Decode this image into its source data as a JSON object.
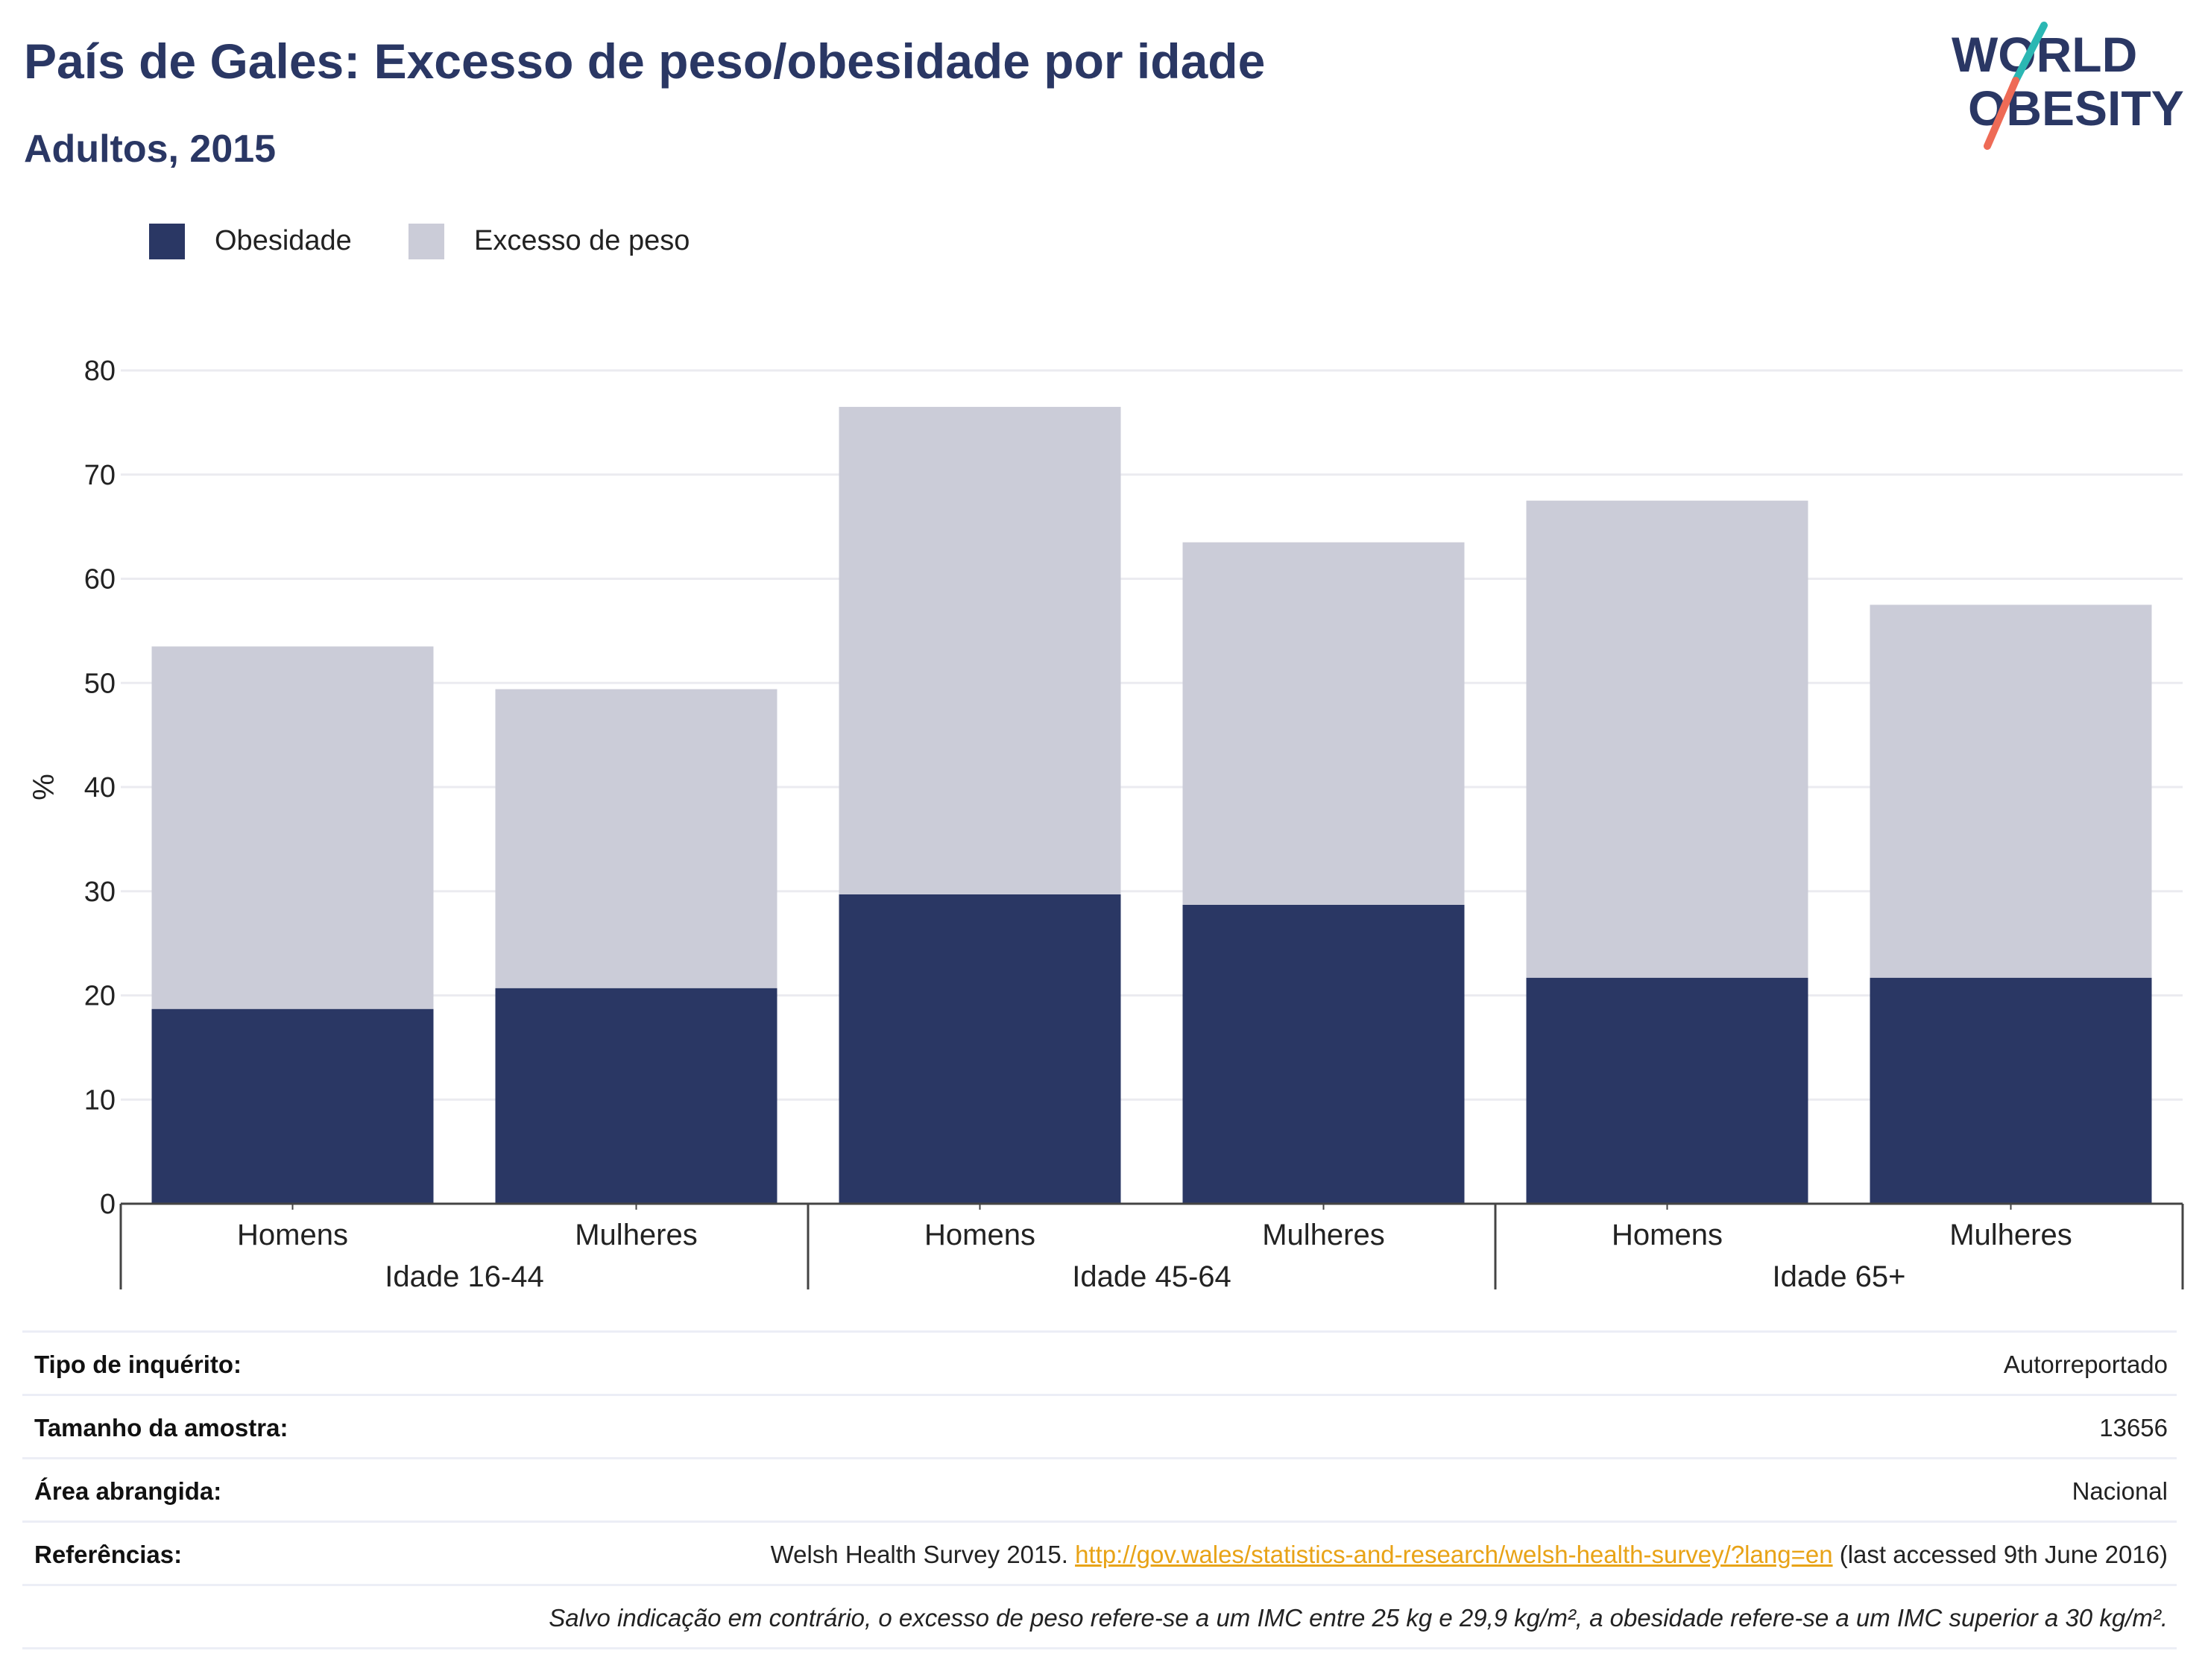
{
  "header": {
    "title": "País de Gales: Excesso de peso/obesidade por idade",
    "subtitle": "Adultos, 2015",
    "logo_line1": "WORLD",
    "logo_line2": "OBESITY"
  },
  "legend": [
    {
      "label": "Obesidade",
      "color": "#2a3764"
    },
    {
      "label": "Excesso de peso",
      "color": "#cbccd8"
    }
  ],
  "chart_data": {
    "type": "bar",
    "stacked": true,
    "ylabel": "%",
    "ylim": [
      0,
      80
    ],
    "yticks": [
      0,
      10,
      20,
      30,
      40,
      50,
      60,
      70,
      80
    ],
    "grid": true,
    "legend_position": "top-left",
    "groups": [
      "Idade 16-44",
      "Idade 45-64",
      "Idade 65+"
    ],
    "categories": [
      "Homens",
      "Mulheres",
      "Homens",
      "Mulheres",
      "Homens",
      "Mulheres"
    ],
    "series": [
      {
        "name": "Obesidade",
        "color": "#2a3764",
        "values": [
          18.7,
          20.7,
          29.7,
          28.7,
          21.7,
          21.7
        ]
      },
      {
        "name": "Excesso de peso",
        "color": "#cbccd8",
        "values": [
          34.8,
          28.7,
          46.8,
          34.8,
          45.8,
          35.8
        ]
      }
    ]
  },
  "info": {
    "rows": [
      {
        "key": "Tipo de inquérito:",
        "value": "Autorreportado"
      },
      {
        "key": "Tamanho da amostra:",
        "value": "13656"
      },
      {
        "key": "Área abrangida:",
        "value": "Nacional"
      }
    ],
    "references": {
      "key": "Referências:",
      "text_before": "Welsh Health Survey 2015.",
      "link": "http://gov.wales/statistics-and-research/welsh-health-survey/?lang=en",
      "text_after": "(last accessed 9th June 2016)"
    },
    "note": "Salvo indicação em contrário, o excesso de peso refere-se a um IMC entre 25 kg e 29,9 kg/m², a obesidade refere-se a um IMC superior a 30 kg/m²."
  }
}
